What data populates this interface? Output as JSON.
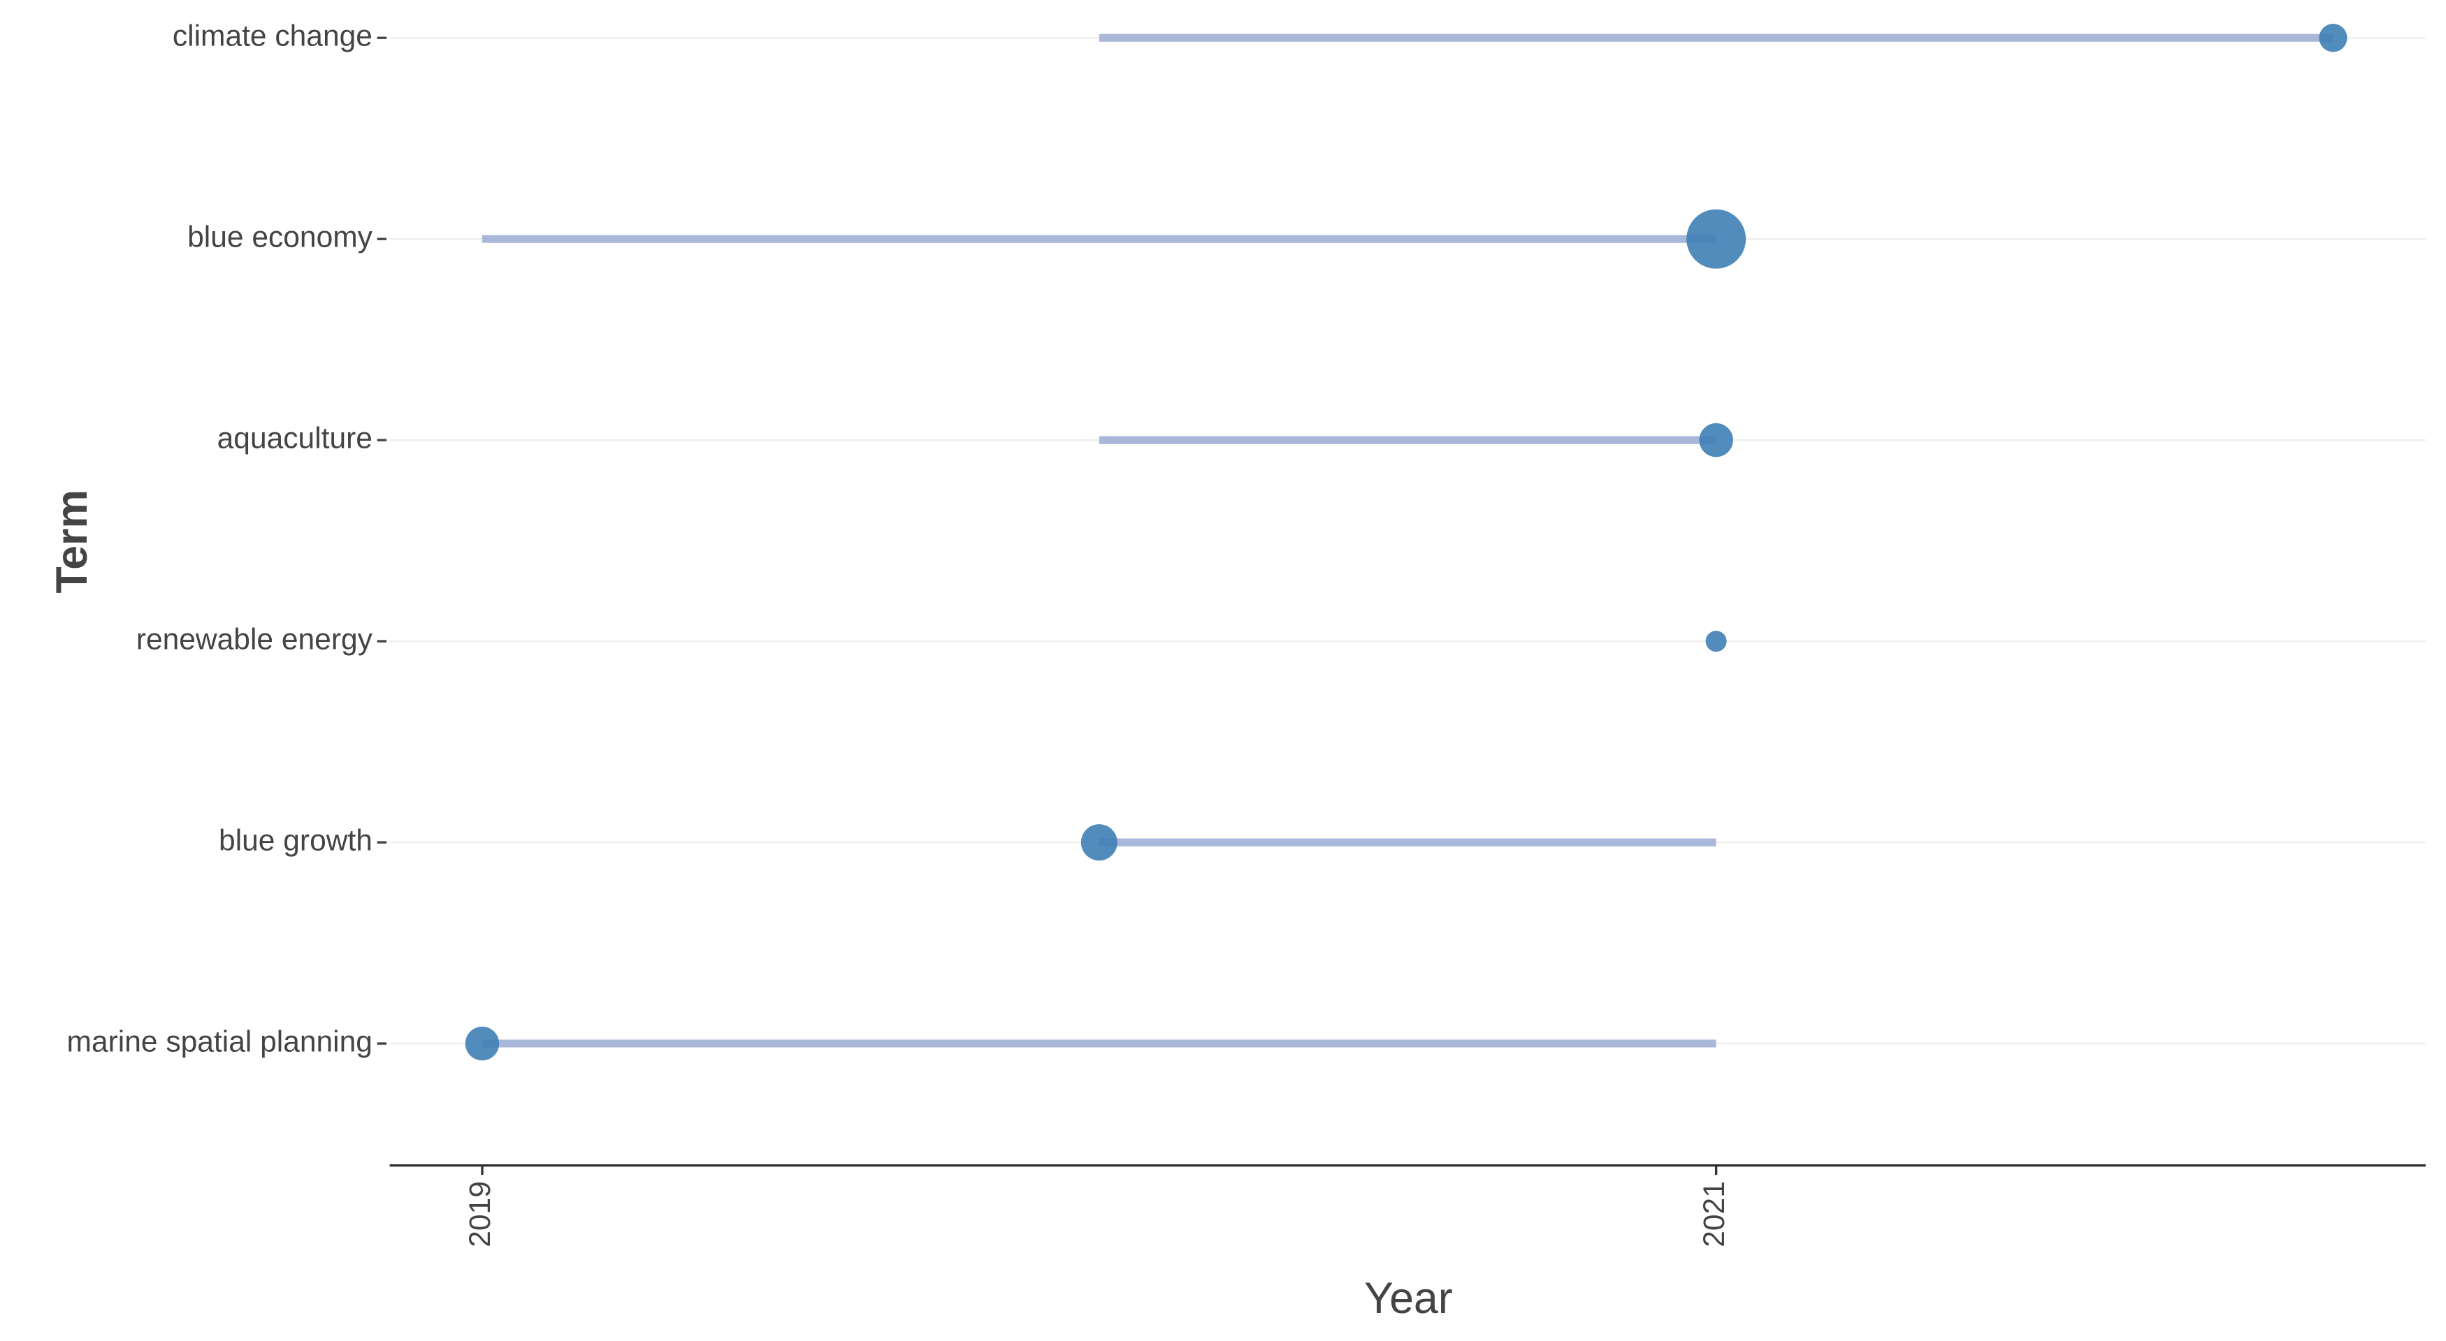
{
  "chart_data": {
    "type": "dot-range",
    "x_label": "Year",
    "y_label": "Term",
    "categories": [
      "climate change",
      "blue economy",
      "aquaculture",
      "renewable energy",
      "blue growth",
      "marine spatial planning"
    ],
    "start": [
      2020,
      2019,
      2020,
      2021,
      2020,
      2019
    ],
    "end": [
      2022,
      2021,
      2021,
      2021,
      2021,
      2021
    ],
    "median": [
      2022,
      2021,
      2021,
      2021,
      2020,
      2019
    ],
    "freq": [
      9,
      40,
      13,
      5,
      15,
      13
    ],
    "line_color": "#a9b7d8",
    "dot_color": "#3f7fb6",
    "xlim": [
      2018.85,
      2022.15
    ],
    "xticks": [
      2019,
      2021
    ],
    "grid": true
  }
}
